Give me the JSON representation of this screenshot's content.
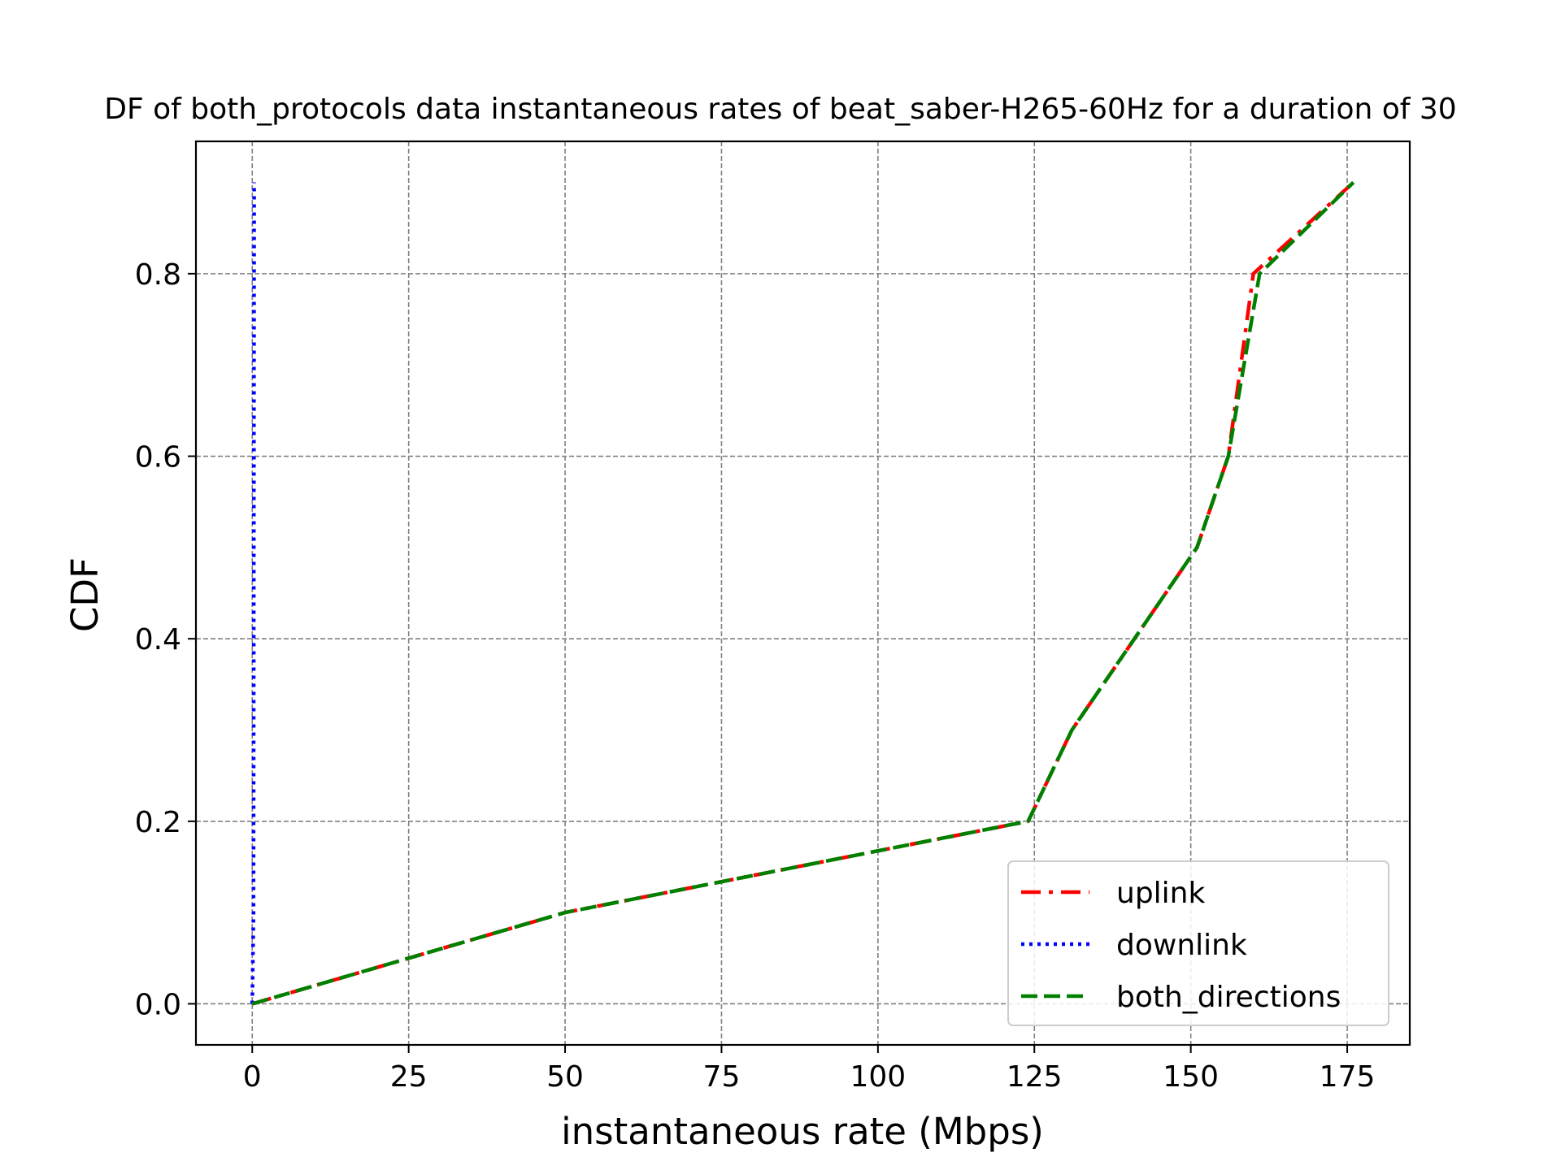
{
  "chart_data": {
    "type": "line",
    "title": "DF of both_protocols data instantaneous rates of beat_saber-H265-60Hz for a duration of 30",
    "xlabel": "instantaneous rate (Mbps)",
    "ylabel": "CDF",
    "xlim": [
      -9,
      185
    ],
    "ylim": [
      -0.045,
      0.945
    ],
    "xticks": [
      0,
      25,
      50,
      75,
      100,
      125,
      150,
      175
    ],
    "yticks": [
      0.0,
      0.2,
      0.4,
      0.6,
      0.8
    ],
    "xtick_labels": [
      "0",
      "25",
      "50",
      "75",
      "100",
      "125",
      "150",
      "175"
    ],
    "ytick_labels": [
      "0.0",
      "0.2",
      "0.4",
      "0.6",
      "0.8"
    ],
    "grid": true,
    "legend_position": "lower right",
    "series": [
      {
        "name": "uplink",
        "color": "#ff0000",
        "style": "dashdot",
        "points": [
          [
            0,
            0.0
          ],
          [
            50,
            0.1
          ],
          [
            124,
            0.2
          ],
          [
            131,
            0.3
          ],
          [
            151,
            0.5
          ],
          [
            156,
            0.6
          ],
          [
            160,
            0.8
          ],
          [
            176,
            0.9
          ]
        ]
      },
      {
        "name": "downlink",
        "color": "#0000ff",
        "style": "dotted",
        "points": [
          [
            0,
            0.0
          ],
          [
            0.2,
            0.1
          ],
          [
            0.25,
            0.5
          ],
          [
            0.3,
            0.9
          ]
        ]
      },
      {
        "name": "both_directions",
        "color": "#008000",
        "style": "dashed",
        "points": [
          [
            0,
            0.0
          ],
          [
            50,
            0.1
          ],
          [
            124,
            0.2
          ],
          [
            131,
            0.3
          ],
          [
            151,
            0.5
          ],
          [
            156,
            0.6
          ],
          [
            161,
            0.8
          ],
          [
            176,
            0.9
          ]
        ]
      }
    ]
  }
}
